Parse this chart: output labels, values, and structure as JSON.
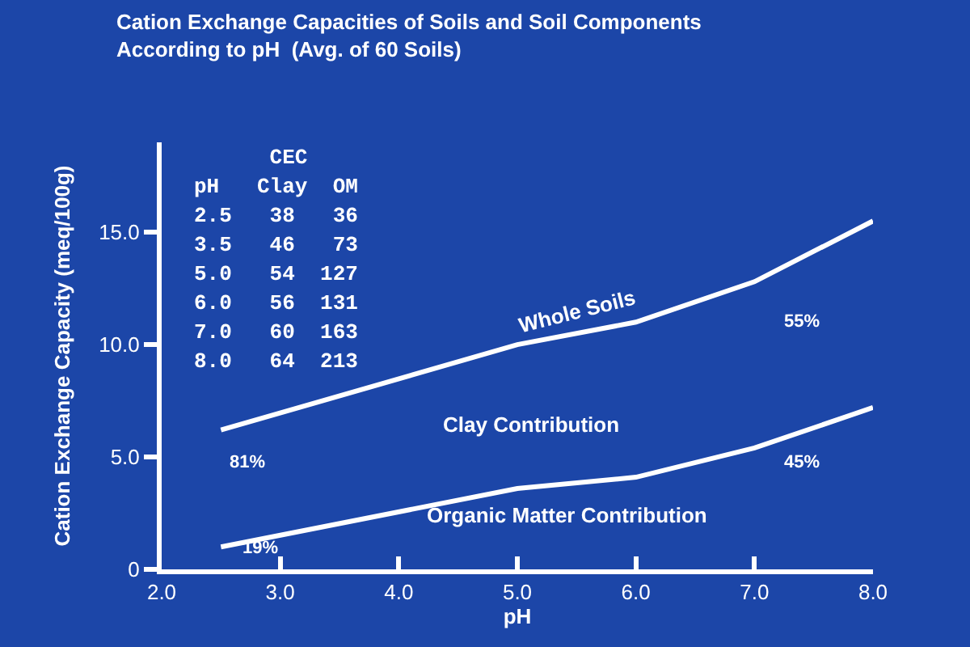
{
  "chart_data": {
    "type": "line",
    "title": "Cation Exchange Capacities of Soils and Soil Components\nAccording to pH  (Avg. of 60 Soils)",
    "xlabel": "pH",
    "ylabel": "Cation Exchange Capacity (meq/100g)",
    "series": [
      {
        "name": "Whole Soils",
        "color": "#ffffff",
        "x": [
          2.5,
          5.0,
          6.0,
          7.0,
          8.0
        ],
        "values": [
          6.2,
          10.0,
          11.0,
          12.8,
          15.5
        ]
      },
      {
        "color": "#ffffff",
        "x": [
          2.5,
          5.0,
          6.0,
          7.0,
          8.0
        ],
        "values": [
          1.0,
          3.6,
          4.1,
          5.4,
          7.2
        ]
      }
    ],
    "xlim": [
      2.0,
      8.0
    ],
    "xticks": [
      {
        "value": 2,
        "label": "2.0"
      },
      {
        "value": 3,
        "label": "3.0"
      },
      {
        "value": 4,
        "label": "4.0"
      },
      {
        "value": 5,
        "label": "5.0"
      },
      {
        "value": 6,
        "label": "6.0"
      },
      {
        "value": 7,
        "label": "7.0"
      },
      {
        "value": 8,
        "label": "8.0"
      }
    ],
    "ylim": [
      0,
      19
    ],
    "yticks": [
      0,
      {
        "value": 5,
        "label": "5.0"
      },
      {
        "value": 10,
        "label": "10.0"
      },
      {
        "value": 15,
        "label": "15.0"
      }
    ],
    "grid": false,
    "legend": false,
    "marker": "none",
    "line_style": "solid",
    "annotations": [
      "Clay Contribution",
      "Organic Matter Contribution",
      "81%",
      "19%",
      "55%",
      "45%",
      "      CEC",
      "pH   Clay  OM",
      "2.5   38   36",
      "3.5   46   73",
      "5.0   54  127",
      "6.0   56  131",
      "7.0   60  163",
      "8.0   64  213"
    ]
  }
}
